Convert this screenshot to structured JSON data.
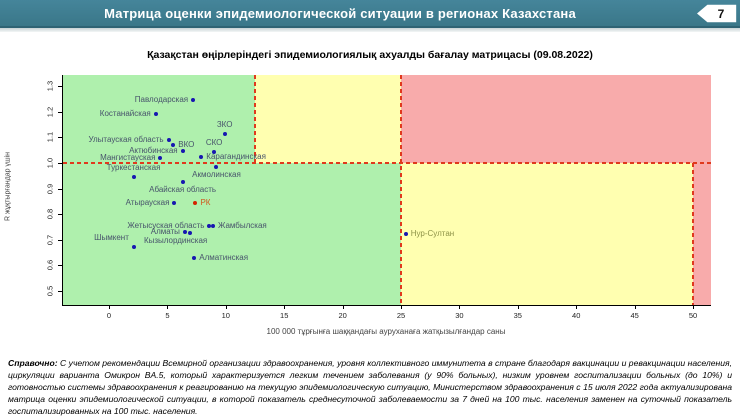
{
  "header": {
    "title": "Матрица оценки эпидемиологической ситуации в регионах Казахстана",
    "page_number": "7"
  },
  "chart_data": {
    "type": "scatter",
    "title": "Қазақстан өңірлеріндегі эпидемиологиялық ахуалды бағалау матрицасы  (09.08.2022)",
    "xlabel": "100 000 тұрғынға шаққандағы ауруханаға жатқызылғандар саны",
    "ylabel": "R жұқтырғандар үшін",
    "xlim": [
      -3.94,
      51.54
    ],
    "ylim": [
      0.445,
      1.344
    ],
    "x_ticks": [
      0,
      5,
      10,
      15,
      20,
      25,
      30,
      35,
      40,
      45,
      50
    ],
    "y_ticks": [
      "0.5",
      "0.6",
      "0.7",
      "0.8",
      "0.9",
      "1.0",
      "1.1",
      "1.2",
      "1.3"
    ],
    "r_threshold": 1.0,
    "hosp_thresholds": [
      12.5,
      25,
      50
    ],
    "colors": {
      "green_zone": "#aff0ad",
      "yellow_zone": "#ffffb0",
      "red_zone": "#f8abab",
      "dashed_line": "#e0391d",
      "point_default": "#1717b0",
      "label_default": "#47536b"
    },
    "points": [
      {
        "name": "Павлодарская",
        "x": 7.2,
        "y": 1.245,
        "pos": "left"
      },
      {
        "name": "Костанайская",
        "x": 4.0,
        "y": 1.19,
        "pos": "left"
      },
      {
        "name": "ЗКО",
        "x": 9.9,
        "y": 1.115,
        "pos": "above"
      },
      {
        "name": "Улытауская область",
        "x": 5.1,
        "y": 1.088,
        "pos": "left"
      },
      {
        "name": "ВКО",
        "x": 5.5,
        "y": 1.072,
        "pos": "right"
      },
      {
        "name": "Актюбинская",
        "x": 6.3,
        "y": 1.045,
        "pos": "left"
      },
      {
        "name": "СКО",
        "x": 9.0,
        "y": 1.042,
        "pos": "above"
      },
      {
        "name": "Карагандинская",
        "x": 7.9,
        "y": 1.022,
        "pos": "right"
      },
      {
        "name": "Мангистауская",
        "x": 4.4,
        "y": 1.021,
        "pos": "left"
      },
      {
        "name": "Акмолинская",
        "x": 9.2,
        "y": 0.983,
        "pos": "below"
      },
      {
        "name": "Туркестанская",
        "x": 2.1,
        "y": 0.945,
        "pos": "above"
      },
      {
        "name": "Абайская область",
        "x": 6.3,
        "y": 0.926,
        "pos": "below"
      },
      {
        "name": "Атырауская",
        "x": 5.6,
        "y": 0.844,
        "pos": "left"
      },
      {
        "name": "РК",
        "x": 7.4,
        "y": 0.844,
        "pos": "right",
        "point_color": "#d42400",
        "label_color": "#d0571c"
      },
      {
        "name": "Жетысуская область",
        "x": 8.6,
        "y": 0.755,
        "pos": "left"
      },
      {
        "name": "Жамбылская",
        "x": 8.9,
        "y": 0.752,
        "pos": "right"
      },
      {
        "name": "Алматы",
        "x": 6.5,
        "y": 0.731,
        "pos": "left"
      },
      {
        "name": "Кызылординская",
        "x": 6.9,
        "y": 0.728,
        "pos": "below",
        "dx": -14
      },
      {
        "name": "Шымкент",
        "x": 2.1,
        "y": 0.672,
        "pos": "above",
        "dx": -22
      },
      {
        "name": "Алматинская",
        "x": 7.3,
        "y": 0.629,
        "pos": "right"
      },
      {
        "name": "Нур-Султан",
        "x": 25.4,
        "y": 0.723,
        "pos": "right",
        "label_color": "#8e9348"
      }
    ]
  },
  "footnote": {
    "label": "Справочно:",
    "text": "С учетом рекомендации Всемирной организации здравоохранения, уровня коллективного иммунитета в стране благодаря вакцинации и ревакцинации населения, циркуляции варианта Омикрон BA.5, который характеризуется легким течением заболевания (у 90% больных), низким уровнем госпитализации больных (до 10%) и готовностью системы здравоохранения к реагированию на текущую эпидемиологическую ситуацию, Министерством здравоохранения с 15 июля 2022 года актуализирована матрица оценки эпидемиологической ситуации, в которой показатель среднесуточной заболеваемости за 7 дней на 100 тыс. населения заменен на суточный показатель госпитализированных на 100 тыс. населения."
  }
}
